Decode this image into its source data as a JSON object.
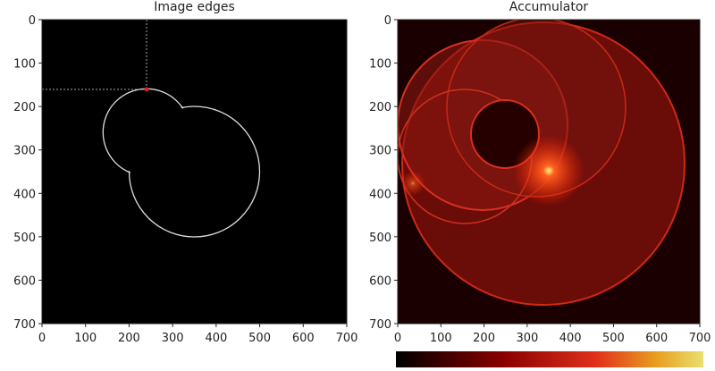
{
  "chart_data": [
    {
      "type": "image",
      "title": "Image edges",
      "xlim": [
        0,
        700
      ],
      "ylim": [
        700,
        0
      ],
      "xticks": [
        0,
        100,
        200,
        300,
        400,
        500,
        600,
        700
      ],
      "yticks": [
        0,
        100,
        200,
        300,
        400,
        500,
        600,
        700
      ]
    },
    {
      "type": "image",
      "title": "Accumulator",
      "xlim": [
        0,
        700
      ],
      "ylim": [
        700,
        0
      ],
      "xticks": [
        0,
        100,
        200,
        300,
        400,
        500,
        600,
        700
      ],
      "yticks": [
        0,
        100,
        200,
        300,
        400,
        500,
        600,
        700
      ]
    }
  ]
}
